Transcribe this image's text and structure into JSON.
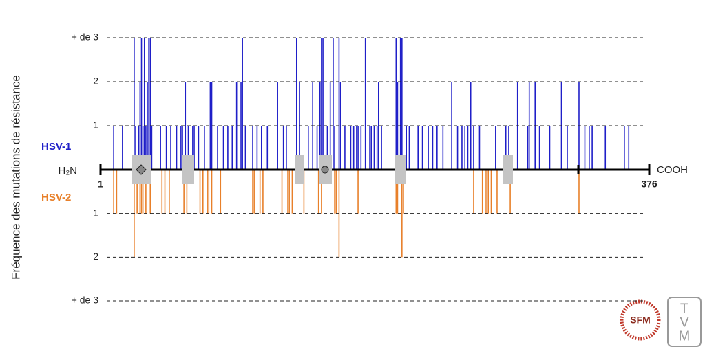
{
  "chart_data": {
    "type": "stem",
    "ylabel": "Fréquence des mutations de résistance",
    "n_terminus": "H₂N",
    "c_terminus": "COOH",
    "xlim": [
      1,
      376
    ],
    "xticks": [
      1,
      376
    ],
    "ylim": [
      0,
      3
    ],
    "yticks": [
      1,
      2,
      {
        "value": 3,
        "label": "+ de 3"
      }
    ],
    "y2lim": [
      3,
      0
    ],
    "y2ticks": [
      1,
      2,
      {
        "value": 3,
        "label": "+ de 3"
      }
    ],
    "grid": true,
    "series": [
      {
        "name": "HSV-1",
        "color": "#1f1fc8",
        "x": [
          10,
          16,
          24,
          25,
          27,
          28,
          29,
          30,
          31,
          32,
          33,
          34,
          35,
          36,
          42,
          46,
          49,
          53,
          56,
          57,
          59,
          61,
          64,
          65,
          68,
          72,
          76,
          77,
          81,
          85,
          88,
          91,
          94,
          97,
          98,
          100,
          105,
          108,
          111,
          115,
          122,
          126,
          128,
          135,
          137,
          143,
          146,
          149,
          151,
          152,
          153,
          156,
          158,
          160,
          161,
          164,
          165,
          168,
          172,
          174,
          176,
          177,
          179,
          182,
          185,
          186,
          188,
          190,
          191,
          193,
          203,
          204,
          206,
          207,
          210,
          212,
          218,
          221,
          225,
          228,
          231,
          235,
          241,
          245,
          248,
          250,
          252,
          254,
          256,
          260,
          271,
          278,
          280,
          286,
          293,
          294,
          298,
          301,
          308,
          316,
          320,
          328,
          332,
          335,
          337,
          346,
          359,
          362
        ],
        "values": [
          1,
          1,
          3,
          1,
          1,
          2,
          3,
          1,
          3,
          1,
          2,
          3,
          3,
          1,
          1,
          1,
          1,
          1,
          1,
          1,
          2,
          1,
          1,
          1,
          1,
          1,
          2,
          2,
          1,
          1,
          1,
          1,
          2,
          2,
          3,
          1,
          1,
          1,
          1,
          1,
          2,
          1,
          1,
          3,
          2,
          1,
          2,
          1,
          2,
          3,
          3,
          1,
          2,
          3,
          1,
          3,
          2,
          1,
          1,
          1,
          1,
          1,
          1,
          3,
          1,
          1,
          1,
          1,
          2,
          1,
          3,
          2,
          3,
          3,
          1,
          1,
          1,
          1,
          1,
          1,
          1,
          1,
          2,
          1,
          1,
          1,
          1,
          2,
          1,
          1,
          1,
          1,
          1,
          2,
          1,
          2,
          2,
          1,
          1,
          2,
          1,
          2,
          1,
          1,
          1,
          1,
          1,
          1
        ]
      },
      {
        "name": "HSV-2",
        "color": "#e8802a",
        "axis": "y2",
        "x": [
          10,
          12,
          24,
          26,
          28,
          29,
          30,
          32,
          35,
          43,
          45,
          48,
          58,
          60,
          69,
          71,
          74,
          75,
          77,
          83,
          105,
          106,
          110,
          112,
          125,
          129,
          130,
          132,
          140,
          150,
          152,
          161,
          162,
          164,
          177,
          203,
          204,
          207,
          208,
          256,
          262,
          264,
          265,
          266,
          268,
          272,
          281,
          328
        ],
        "values": [
          1,
          1,
          2,
          1,
          1,
          1,
          1,
          1,
          1,
          1,
          1,
          1,
          1,
          1,
          1,
          1,
          1,
          1,
          1,
          1,
          1,
          1,
          1,
          1,
          1,
          1,
          1,
          1,
          1,
          1,
          1,
          1,
          1,
          2,
          1,
          1,
          1,
          2,
          1,
          1,
          1,
          1,
          1,
          1,
          1,
          1,
          1,
          1
        ]
      }
    ]
  },
  "logos": {
    "sfm": "SFM",
    "tvm": [
      "T",
      "V",
      "M"
    ]
  }
}
